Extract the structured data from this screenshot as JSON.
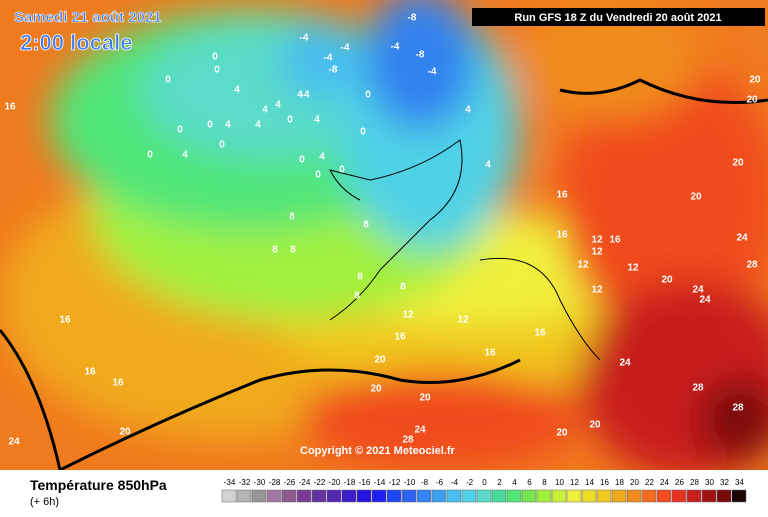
{
  "header": {
    "date": "Samedi 21 août 2021",
    "time": "2:00 locale",
    "run": "Run GFS 18 Z du Vendredi 20 août 2021"
  },
  "map": {
    "copyright": "Copyright © 2021 Meteociel.fr",
    "contour_labels": [
      0,
      0,
      0,
      0,
      0,
      0,
      0,
      0,
      0,
      0,
      0,
      0,
      0,
      4,
      4,
      4,
      4,
      4,
      4,
      4,
      4,
      4,
      4,
      4,
      -4,
      -4,
      -4,
      -4,
      -4,
      -4,
      -8,
      -8,
      -8,
      8,
      8,
      8,
      8,
      8,
      8,
      8,
      12,
      12,
      12,
      12,
      12,
      12,
      12,
      16,
      16,
      16,
      16,
      16,
      16,
      16,
      16,
      16,
      16,
      20,
      20,
      20,
      20,
      20,
      20,
      20,
      20,
      20,
      20,
      20,
      24,
      24,
      24,
      24,
      24,
      24,
      28,
      28,
      28,
      28
    ]
  },
  "legend": {
    "title": "Température 850hPa",
    "subtitle": "(+ 6h)",
    "ticks": [
      -34,
      -32,
      -30,
      -28,
      -26,
      -24,
      -22,
      -20,
      -18,
      -16,
      -14,
      -12,
      -10,
      -8,
      -6,
      -4,
      -2,
      0,
      2,
      4,
      6,
      8,
      10,
      12,
      14,
      16,
      18,
      20,
      22,
      24,
      26,
      28,
      30,
      32,
      34
    ],
    "colors": [
      "#d2d2d2",
      "#b4b4b4",
      "#969696",
      "#a078a0",
      "#8c5a8c",
      "#783c96",
      "#6432a0",
      "#5028b4",
      "#3c1ec8",
      "#2814dc",
      "#1e1ef0",
      "#1e46f0",
      "#2864f0",
      "#3282f0",
      "#3ca0f0",
      "#46bef0",
      "#50d2e6",
      "#5adcc8",
      "#46dc9b",
      "#50e678",
      "#78e650",
      "#a0f03c",
      "#c8f03c",
      "#f0f03c",
      "#f0dc28",
      "#f0c81e",
      "#f0aa1e",
      "#f08c1e",
      "#f06e1e",
      "#f04b1e",
      "#e6321e",
      "#c81e1e",
      "#a01414",
      "#780a0a",
      "#1e0505"
    ]
  }
}
